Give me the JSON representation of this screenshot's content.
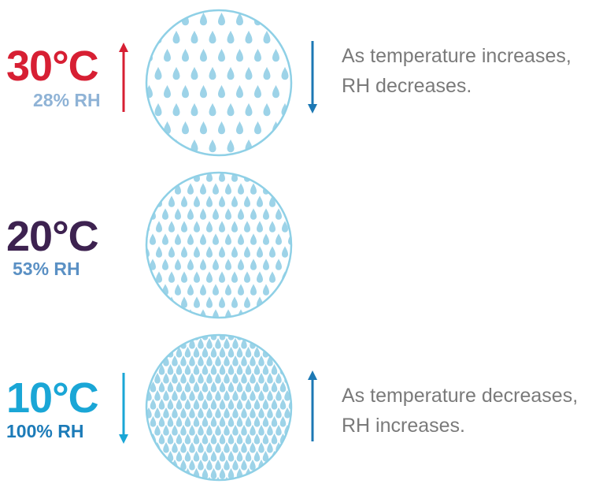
{
  "rows": [
    {
      "temperature": "30°C",
      "humidity": "28% RH",
      "temp_color": "#d71f33",
      "rh_color": "#8fb3d6",
      "arrow_color": "#d71f33",
      "arrow_direction": "up",
      "droplet_density": "sparse",
      "note_lines": [
        "As temperature increases,",
        "RH decreases."
      ],
      "note_arrow_direction": "down"
    },
    {
      "temperature": "20°C",
      "humidity": "53% RH",
      "temp_color": "#3d2250",
      "rh_color": "#5a90c4",
      "droplet_density": "medium"
    },
    {
      "temperature": "10°C",
      "humidity": "100% RH",
      "temp_color": "#1aa6d6",
      "rh_color": "#1c7bb8",
      "arrow_color": "#1aa6d6",
      "arrow_direction": "down",
      "droplet_density": "dense",
      "note_lines": [
        "As temperature decreases,",
        "RH increases."
      ],
      "note_arrow_direction": "up"
    }
  ],
  "colors": {
    "circle_stroke": "#8fd0e6",
    "droplet": "#9dd3e8",
    "note_arrow": "#1c78b4",
    "note_text": "#7a7a7a"
  }
}
